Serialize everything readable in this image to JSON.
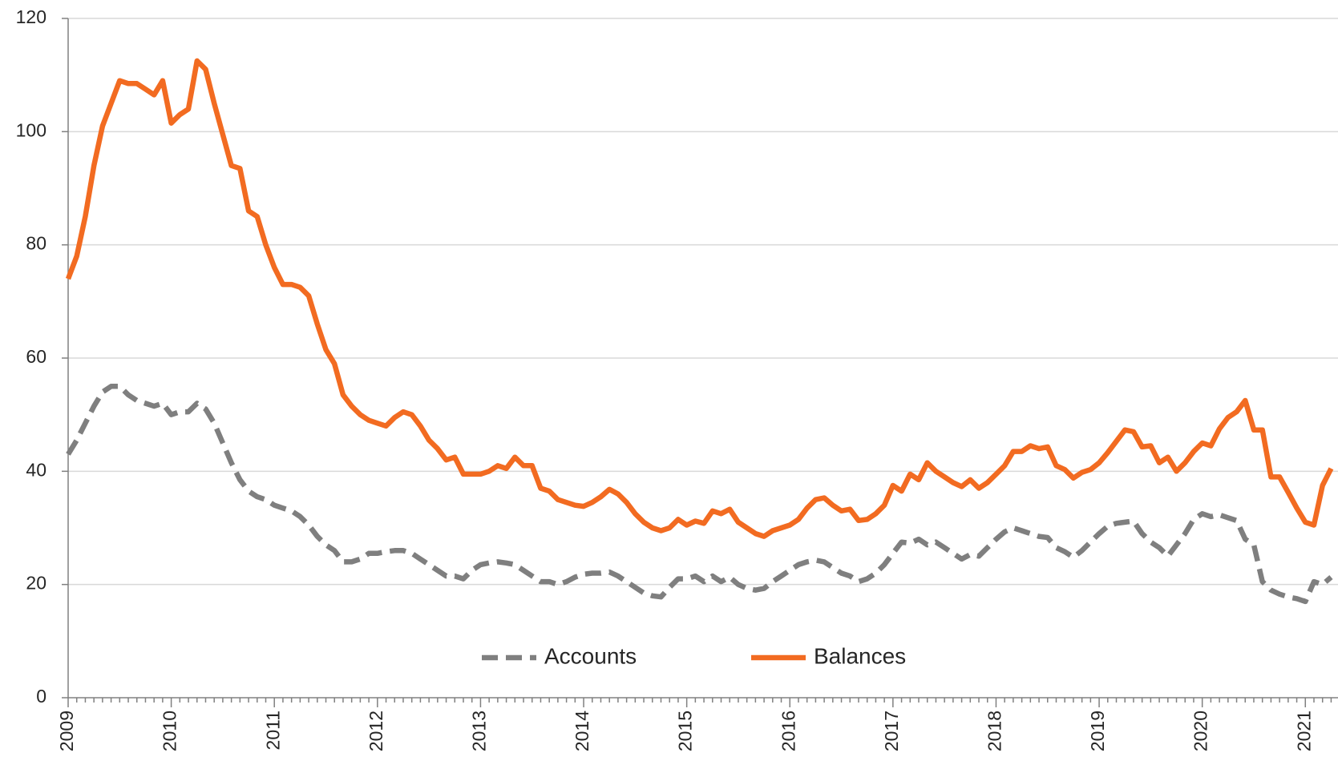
{
  "chart_data": {
    "type": "line",
    "categories": [
      "2009",
      null,
      null,
      null,
      null,
      null,
      null,
      null,
      null,
      null,
      null,
      null,
      "2010",
      null,
      null,
      null,
      null,
      null,
      null,
      null,
      null,
      null,
      null,
      null,
      "2011",
      null,
      null,
      null,
      null,
      null,
      null,
      null,
      null,
      null,
      null,
      null,
      "2012",
      null,
      null,
      null,
      null,
      null,
      null,
      null,
      null,
      null,
      null,
      null,
      "2013",
      null,
      null,
      null,
      null,
      null,
      null,
      null,
      null,
      null,
      null,
      null,
      "2014",
      null,
      null,
      null,
      null,
      null,
      null,
      null,
      null,
      null,
      null,
      null,
      "2015",
      null,
      null,
      null,
      null,
      null,
      null,
      null,
      null,
      null,
      null,
      null,
      "2016",
      null,
      null,
      null,
      null,
      null,
      null,
      null,
      null,
      null,
      null,
      null,
      "2017",
      null,
      null,
      null,
      null,
      null,
      null,
      null,
      null,
      null,
      null,
      null,
      "2018",
      null,
      null,
      null,
      null,
      null,
      null,
      null,
      null,
      null,
      null,
      null,
      "2019",
      null,
      null,
      null,
      null,
      null,
      null,
      null,
      null,
      null,
      null,
      null,
      "2020",
      null,
      null,
      null,
      null,
      null,
      null,
      null,
      null,
      null,
      null,
      null,
      "2021",
      null,
      null,
      null
    ],
    "series": [
      {
        "name": "Accounts",
        "color": "#7f7f7f",
        "dash": true,
        "values": [
          43,
          45.5,
          48.5,
          51.5,
          54,
          55,
          55,
          53.5,
          52.5,
          52,
          51.5,
          52,
          50,
          50.5,
          50.5,
          52,
          51,
          48.5,
          45,
          41.5,
          38.5,
          36.5,
          35.5,
          35,
          34,
          33.5,
          33,
          32,
          30.5,
          28.5,
          27,
          26,
          24,
          24,
          24.5,
          25.5,
          25.5,
          25.8,
          26,
          26,
          25.5,
          24.5,
          23.5,
          22.5,
          21.5,
          21.5,
          21,
          22.5,
          23.5,
          23.8,
          24,
          23.8,
          23.5,
          22.5,
          21.5,
          20.5,
          20.5,
          20,
          20.5,
          21.3,
          21.8,
          22,
          22,
          22.2,
          21.5,
          20.5,
          19.5,
          18.5,
          18,
          17.8,
          19.5,
          21,
          21,
          21.5,
          20.5,
          21.5,
          20.5,
          21.3,
          20,
          19.3,
          19,
          19.3,
          20.5,
          21.5,
          22.5,
          23.5,
          24,
          24.3,
          24,
          23,
          22,
          21.5,
          20.5,
          21,
          22,
          23.5,
          25.5,
          27.5,
          27.3,
          28,
          27,
          27.5,
          26.5,
          25.5,
          24.5,
          25.3,
          25,
          26.5,
          28,
          29.3,
          30,
          29.5,
          29,
          28.5,
          28.3,
          26.5,
          25.8,
          24.8,
          26,
          27.5,
          29,
          30.3,
          30.8,
          31,
          31.2,
          29,
          27.5,
          26.5,
          25,
          27,
          29,
          31.5,
          32.5,
          32,
          32.3,
          31.8,
          31.3,
          28,
          27,
          20.5,
          19,
          18.3,
          17.8,
          17.5,
          17,
          20.5,
          20,
          21.3
        ]
      },
      {
        "name": "Balances",
        "color": "#f26b21",
        "dash": false,
        "values": [
          74,
          78,
          85,
          94,
          101,
          105,
          109,
          108.5,
          108.5,
          107.5,
          106.5,
          109,
          101.5,
          103,
          104,
          112.5,
          111,
          105,
          99.5,
          94,
          93.5,
          86,
          85,
          80,
          76,
          73,
          73,
          72.5,
          71,
          66,
          61.5,
          59,
          53.5,
          51.5,
          50,
          49,
          48.5,
          48,
          49.5,
          50.5,
          50,
          48,
          45.5,
          44,
          42,
          42.5,
          39.5,
          39.5,
          39.5,
          40,
          41,
          40.5,
          42.5,
          41,
          41,
          37,
          36.5,
          35,
          34.5,
          34,
          33.8,
          34.5,
          35.5,
          36.8,
          36,
          34.5,
          32.5,
          31,
          30,
          29.5,
          30,
          31.5,
          30.5,
          31.2,
          30.8,
          33,
          32.5,
          33.3,
          31,
          30,
          29,
          28.5,
          29.5,
          30,
          30.5,
          31.5,
          33.5,
          35,
          35.3,
          34,
          33,
          33.3,
          31.3,
          31.5,
          32.5,
          34,
          37.5,
          36.5,
          39.5,
          38.5,
          41.5,
          40,
          39,
          38,
          37.3,
          38.5,
          37,
          38,
          39.5,
          41,
          43.5,
          43.5,
          44.5,
          44,
          44.3,
          41,
          40.3,
          38.8,
          39.8,
          40.3,
          41.5,
          43.3,
          45.3,
          47.3,
          47,
          44.3,
          44.5,
          41.5,
          42.5,
          40,
          41.5,
          43.5,
          45,
          44.5,
          47.5,
          49.5,
          50.5,
          52.5,
          47.3,
          47.3,
          39,
          39,
          36.3,
          33.5,
          31,
          30.5,
          37.5,
          40.5
        ]
      }
    ],
    "ylim": [
      0,
      120
    ],
    "yticks": [
      0,
      20,
      40,
      60,
      80,
      100,
      120
    ],
    "grid": true,
    "legend": "bottom"
  }
}
